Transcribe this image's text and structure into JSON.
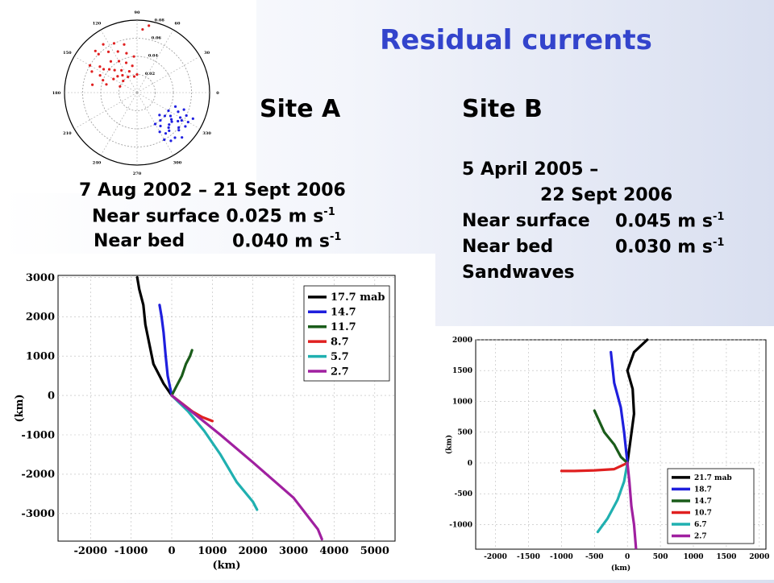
{
  "slide": {
    "title": "Residual currents",
    "siteA": {
      "heading": "Site A",
      "dates": "7 Aug 2002 – 21 Sept 2006",
      "rows": [
        {
          "label": "Near surface",
          "value": "0.025 m s",
          "exp": "-1"
        },
        {
          "label": "Near bed",
          "value": "0.040 m s",
          "exp": "-1"
        }
      ]
    },
    "siteB": {
      "heading": "Site B",
      "date1": "5 April 2005 –",
      "date2": "22 Sept 2006",
      "rows": [
        {
          "label": "Near surface",
          "value": "0.045 m s",
          "exp": "-1"
        },
        {
          "label": "Near bed",
          "value": "0.030 m s",
          "exp": "-1"
        }
      ],
      "extra": "Sandwaves"
    }
  },
  "chart_data": [
    {
      "type": "scatter",
      "polar": true,
      "angle_ticks": [
        "90",
        "60",
        "30",
        "0",
        "330",
        "300",
        "270",
        "240",
        "210",
        "180",
        "150",
        "120"
      ],
      "radial_ticks": [
        "0.02",
        "0.04",
        "0.06",
        "0.08"
      ],
      "rmax": 0.08,
      "series": [
        {
          "color": "#e02020",
          "points": [
            [
              95,
              0.04
            ],
            [
              100,
              0.03
            ],
            [
              105,
              0.045
            ],
            [
              110,
              0.035
            ],
            [
              115,
              0.05
            ],
            [
              120,
              0.04
            ],
            [
              125,
              0.03
            ],
            [
              130,
              0.045
            ],
            [
              135,
              0.035
            ],
            [
              140,
              0.04
            ],
            [
              145,
              0.05
            ],
            [
              150,
              0.03
            ],
            [
              155,
              0.045
            ],
            [
              160,
              0.04
            ],
            [
              165,
              0.035
            ],
            [
              170,
              0.05
            ],
            [
              115,
              0.06
            ],
            [
              125,
              0.055
            ],
            [
              135,
              0.06
            ],
            [
              145,
              0.045
            ],
            [
              155,
              0.055
            ],
            [
              105,
              0.055
            ],
            [
              130,
              0.025
            ],
            [
              140,
              0.028
            ],
            [
              120,
              0.02
            ],
            [
              100,
              0.018
            ],
            [
              110,
              0.025
            ],
            [
              135,
              0.065
            ],
            [
              150,
              0.06
            ],
            [
              160,
              0.02
            ],
            [
              90,
              0.02
            ],
            [
              85,
              0.07
            ],
            [
              80,
              0.075
            ],
            [
              140,
              0.02
            ],
            [
              125,
              0.065
            ]
          ]
        },
        {
          "color": "#2020e0",
          "points": [
            [
              300,
              0.05
            ],
            [
              305,
              0.045
            ],
            [
              310,
              0.055
            ],
            [
              315,
              0.05
            ],
            [
              320,
              0.06
            ],
            [
              325,
              0.045
            ],
            [
              330,
              0.055
            ],
            [
              335,
              0.06
            ],
            [
              320,
              0.04
            ],
            [
              310,
              0.04
            ],
            [
              300,
              0.06
            ],
            [
              305,
              0.065
            ],
            [
              315,
              0.07
            ],
            [
              325,
              0.065
            ],
            [
              330,
              0.04
            ],
            [
              335,
              0.05
            ],
            [
              340,
              0.055
            ],
            [
              320,
              0.05
            ],
            [
              310,
              0.065
            ],
            [
              300,
              0.04
            ],
            [
              315,
              0.035
            ],
            [
              325,
              0.055
            ],
            [
              330,
              0.065
            ],
            [
              340,
              0.045
            ],
            [
              305,
              0.055
            ],
            [
              318,
              0.062
            ],
            [
              322,
              0.048
            ],
            [
              328,
              0.058
            ],
            [
              312,
              0.052
            ],
            [
              335,
              0.068
            ]
          ]
        }
      ]
    },
    {
      "type": "line",
      "xlabel": "(km)",
      "ylabel": "(km)",
      "xlim": [
        -2800,
        5500
      ],
      "ylim": [
        -3700,
        3050
      ],
      "xticks": [
        -2000,
        -1000,
        0,
        1000,
        2000,
        3000,
        4000,
        5000
      ],
      "yticks": [
        3000,
        2000,
        1000,
        0,
        -1000,
        -2000,
        -3000
      ],
      "legend": "top-right",
      "series": [
        {
          "name": "17.7 mab",
          "color": "#000000",
          "points": [
            [
              0,
              0
            ],
            [
              -200,
              300
            ],
            [
              -450,
              800
            ],
            [
              -550,
              1300
            ],
            [
              -650,
              1800
            ],
            [
              -700,
              2300
            ],
            [
              -800,
              2700
            ],
            [
              -850,
              3000
            ]
          ]
        },
        {
          "name": "14.7",
          "color": "#1f1fdd",
          "points": [
            [
              0,
              0
            ],
            [
              -100,
              500
            ],
            [
              -150,
              1000
            ],
            [
              -200,
              1600
            ],
            [
              -250,
              2000
            ],
            [
              -300,
              2300
            ]
          ]
        },
        {
          "name": "11.7",
          "color": "#1a5c1a",
          "points": [
            [
              0,
              0
            ],
            [
              100,
              200
            ],
            [
              250,
              500
            ],
            [
              350,
              800
            ],
            [
              450,
              1000
            ],
            [
              500,
              1150
            ]
          ]
        },
        {
          "name": "8.7",
          "color": "#e02020",
          "points": [
            [
              0,
              0
            ],
            [
              250,
              -200
            ],
            [
              500,
              -400
            ],
            [
              750,
              -550
            ],
            [
              1000,
              -650
            ]
          ]
        },
        {
          "name": "5.7",
          "color": "#20b0b0",
          "points": [
            [
              0,
              0
            ],
            [
              400,
              -400
            ],
            [
              800,
              -900
            ],
            [
              1200,
              -1500
            ],
            [
              1600,
              -2200
            ],
            [
              2000,
              -2700
            ],
            [
              2100,
              -2900
            ]
          ]
        },
        {
          "name": "2.7",
          "color": "#a020a0",
          "points": [
            [
              0,
              0
            ],
            [
              600,
              -500
            ],
            [
              1200,
              -1000
            ],
            [
              2000,
              -1700
            ],
            [
              3000,
              -2600
            ],
            [
              3600,
              -3400
            ],
            [
              3700,
              -3650
            ]
          ]
        }
      ]
    },
    {
      "type": "line",
      "xlabel": "(km)",
      "ylabel": "(km)",
      "xlim": [
        -2300,
        2100
      ],
      "ylim": [
        -1400,
        2000
      ],
      "xticks": [
        -2000,
        -1500,
        -1000,
        -500,
        0,
        500,
        1000,
        1500,
        2000
      ],
      "yticks": [
        2000,
        1500,
        1000,
        500,
        0,
        -500,
        -1000
      ],
      "legend": "bottom-right",
      "series": [
        {
          "name": "21.7 mab",
          "color": "#000000",
          "points": [
            [
              0,
              0
            ],
            [
              50,
              400
            ],
            [
              100,
              800
            ],
            [
              80,
              1200
            ],
            [
              0,
              1500
            ],
            [
              100,
              1800
            ],
            [
              300,
              2000
            ]
          ]
        },
        {
          "name": "18.7",
          "color": "#1f1fdd",
          "points": [
            [
              0,
              0
            ],
            [
              -50,
              500
            ],
            [
              -100,
              900
            ],
            [
              -200,
              1300
            ],
            [
              -250,
              1800
            ]
          ]
        },
        {
          "name": "14.7",
          "color": "#1a5c1a",
          "points": [
            [
              0,
              0
            ],
            [
              -100,
              100
            ],
            [
              -200,
              300
            ],
            [
              -350,
              500
            ],
            [
              -500,
              850
            ]
          ]
        },
        {
          "name": "10.7",
          "color": "#e02020",
          "points": [
            [
              0,
              0
            ],
            [
              -200,
              -100
            ],
            [
              -500,
              -120
            ],
            [
              -800,
              -130
            ],
            [
              -1000,
              -130
            ]
          ]
        },
        {
          "name": "6.7",
          "color": "#20b0b0",
          "points": [
            [
              0,
              0
            ],
            [
              -50,
              -300
            ],
            [
              -150,
              -600
            ],
            [
              -300,
              -900
            ],
            [
              -450,
              -1120
            ]
          ]
        },
        {
          "name": "2.7",
          "color": "#a020a0",
          "points": [
            [
              0,
              0
            ],
            [
              30,
              -300
            ],
            [
              60,
              -700
            ],
            [
              100,
              -1000
            ],
            [
              130,
              -1380
            ]
          ]
        }
      ]
    }
  ]
}
